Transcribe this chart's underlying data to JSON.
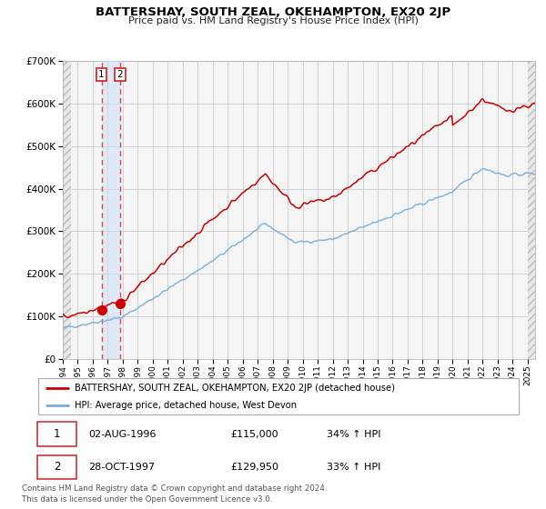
{
  "title": "BATTERSHAY, SOUTH ZEAL, OKEHAMPTON, EX20 2JP",
  "subtitle": "Price paid vs. HM Land Registry's House Price Index (HPI)",
  "legend_line1": "BATTERSHAY, SOUTH ZEAL, OKEHAMPTON, EX20 2JP (detached house)",
  "legend_line2": "HPI: Average price, detached house, West Devon",
  "sale1_label": "1",
  "sale1_date": "02-AUG-1996",
  "sale1_price": "£115,000",
  "sale1_hpi": "34% ↑ HPI",
  "sale1_year": 1996.58,
  "sale1_value": 115000,
  "sale2_label": "2",
  "sale2_date": "28-OCT-1997",
  "sale2_price": "£129,950",
  "sale2_hpi": "33% ↑ HPI",
  "sale2_year": 1997.82,
  "sale2_value": 129950,
  "red_color": "#cc0000",
  "blue_color": "#7aaed6",
  "background_color": "#f5f5f5",
  "grid_color": "#cccccc",
  "footnote": "Contains HM Land Registry data © Crown copyright and database right 2024.\nThis data is licensed under the Open Government Licence v3.0.",
  "xmin": 1994.0,
  "xmax": 2025.5,
  "ymin": 0,
  "ymax": 700000
}
